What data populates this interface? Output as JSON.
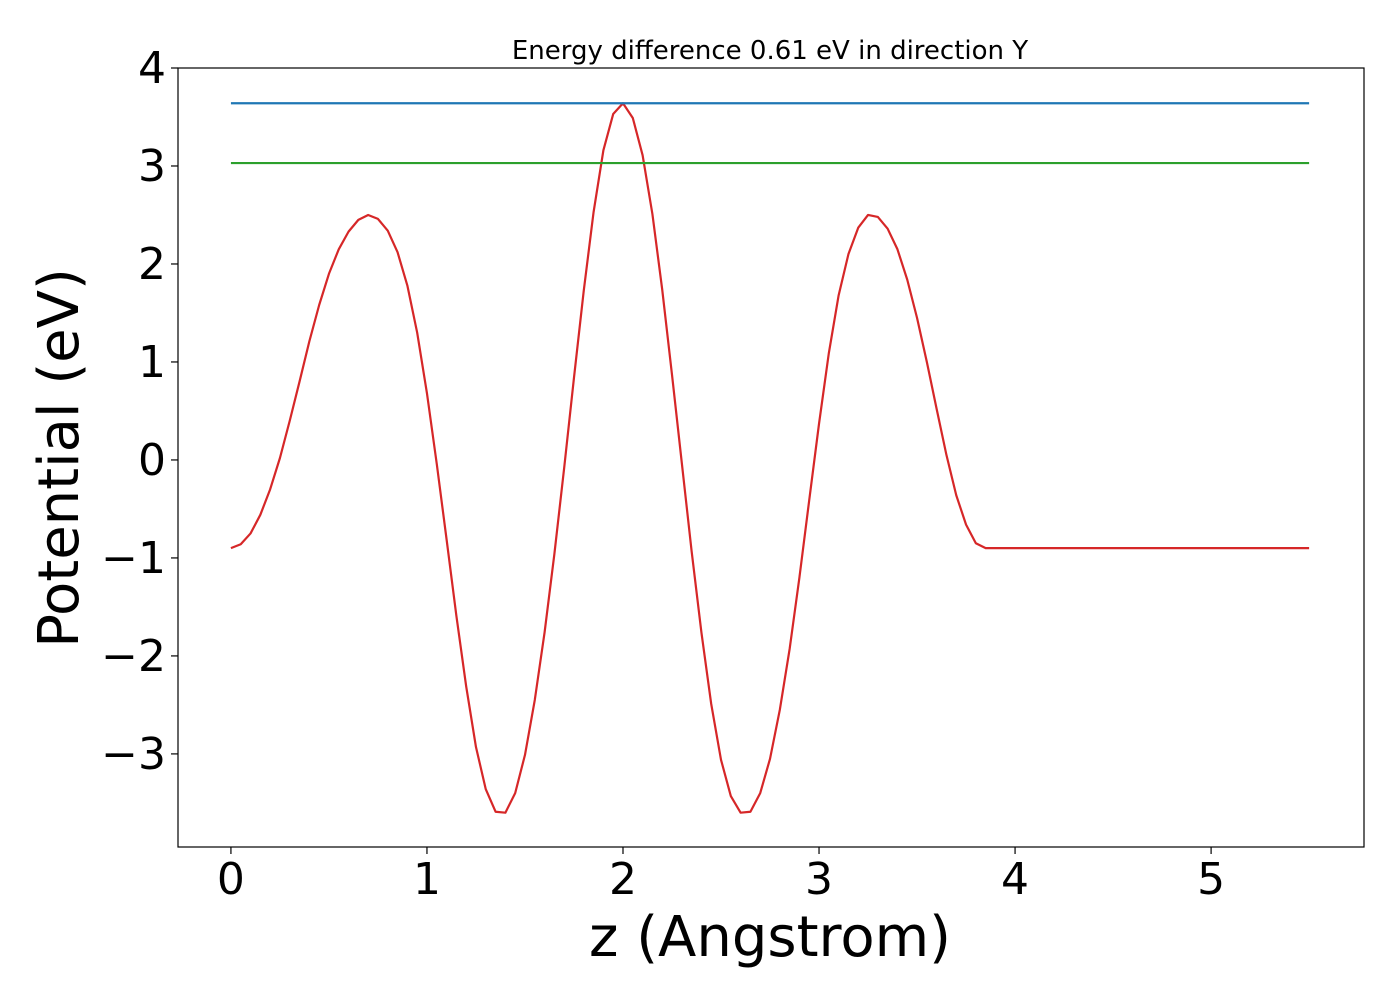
{
  "chart_data": {
    "type": "line",
    "title": "Energy difference 0.61 eV in direction Y",
    "xlabel": "z (Angstrom)",
    "ylabel": "Potential (eV)",
    "xlim": [
      -0.27,
      5.78
    ],
    "ylim": [
      -3.95,
      4.0
    ],
    "x_ticks": [
      0,
      1,
      2,
      3,
      4,
      5
    ],
    "x_tick_labels": [
      "0",
      "1",
      "2",
      "3",
      "4",
      "5"
    ],
    "y_ticks": [
      -3,
      -2,
      -1,
      0,
      1,
      2,
      3,
      4
    ],
    "y_tick_labels": [
      "−3",
      "−2",
      "−1",
      "0",
      "1",
      "2",
      "3",
      "4"
    ],
    "grid": false,
    "legend": "none",
    "series": [
      {
        "color": "#d62728",
        "x": [
          0.0,
          0.05,
          0.1,
          0.15,
          0.2,
          0.25,
          0.3,
          0.35,
          0.4,
          0.45,
          0.5,
          0.55,
          0.6,
          0.65,
          0.7,
          0.75,
          0.8,
          0.85,
          0.9,
          0.95,
          1.0,
          1.05,
          1.1,
          1.15,
          1.2,
          1.25,
          1.3,
          1.35,
          1.4,
          1.45,
          1.5,
          1.55,
          1.6,
          1.65,
          1.7,
          1.75,
          1.8,
          1.85,
          1.9,
          1.95,
          2.0,
          2.05,
          2.1,
          2.15,
          2.2,
          2.25,
          2.3,
          2.35,
          2.4,
          2.45,
          2.5,
          2.55,
          2.6,
          2.65,
          2.7,
          2.75,
          2.8,
          2.85,
          2.9,
          2.95,
          3.0,
          3.05,
          3.1,
          3.15,
          3.2,
          3.25,
          3.3,
          3.35,
          3.4,
          3.45,
          3.5,
          3.55,
          3.6,
          3.65,
          3.7,
          3.75,
          3.8,
          3.85,
          3.9,
          3.95,
          4.0,
          4.05,
          4.1,
          4.15,
          4.2,
          4.25,
          4.3,
          4.35,
          4.4,
          4.45,
          4.5,
          4.55,
          4.6,
          4.65,
          4.7,
          4.75,
          4.8,
          4.85,
          4.9,
          4.95,
          5.0,
          5.05,
          5.1,
          5.15,
          5.2,
          5.25,
          5.3,
          5.35,
          5.4,
          5.45,
          5.5
        ],
        "y": [
          -0.9,
          -0.86,
          -0.75,
          -0.56,
          -0.3,
          0.02,
          0.4,
          0.8,
          1.21,
          1.58,
          1.9,
          2.15,
          2.33,
          2.45,
          2.5,
          2.46,
          2.34,
          2.12,
          1.78,
          1.3,
          0.68,
          -0.04,
          -0.81,
          -1.59,
          -2.31,
          -2.93,
          -3.36,
          -3.59,
          -3.6,
          -3.4,
          -3.01,
          -2.45,
          -1.76,
          -0.96,
          -0.08,
          0.84,
          1.73,
          2.53,
          3.16,
          3.53,
          3.64,
          3.49,
          3.11,
          2.51,
          1.74,
          0.87,
          -0.03,
          -0.93,
          -1.76,
          -2.49,
          -3.06,
          -3.43,
          -3.6,
          -3.59,
          -3.4,
          -3.05,
          -2.55,
          -1.93,
          -1.2,
          -0.41,
          0.37,
          1.09,
          1.68,
          2.1,
          2.37,
          2.5,
          2.48,
          2.36,
          2.15,
          1.84,
          1.45,
          1.0,
          0.52,
          0.05,
          -0.36,
          -0.66,
          -0.85,
          -0.9,
          -0.9,
          -0.9,
          -0.9,
          -0.9,
          -0.9,
          -0.9,
          -0.9,
          -0.9,
          -0.9,
          -0.9,
          -0.9,
          -0.9,
          -0.9,
          -0.9,
          -0.9,
          -0.9,
          -0.9,
          -0.9,
          -0.9,
          -0.9,
          -0.9,
          -0.9,
          -0.9,
          -0.9,
          -0.9,
          -0.9,
          -0.9,
          -0.9,
          -0.9,
          -0.9,
          -0.9,
          -0.9,
          -0.9
        ]
      },
      {
        "color": "#1f77b4",
        "x": [
          0.0,
          5.5
        ],
        "y": [
          3.64,
          3.64
        ]
      },
      {
        "color": "#2ca02c",
        "x": [
          0.0,
          5.5
        ],
        "y": [
          3.03,
          3.03
        ]
      }
    ]
  }
}
